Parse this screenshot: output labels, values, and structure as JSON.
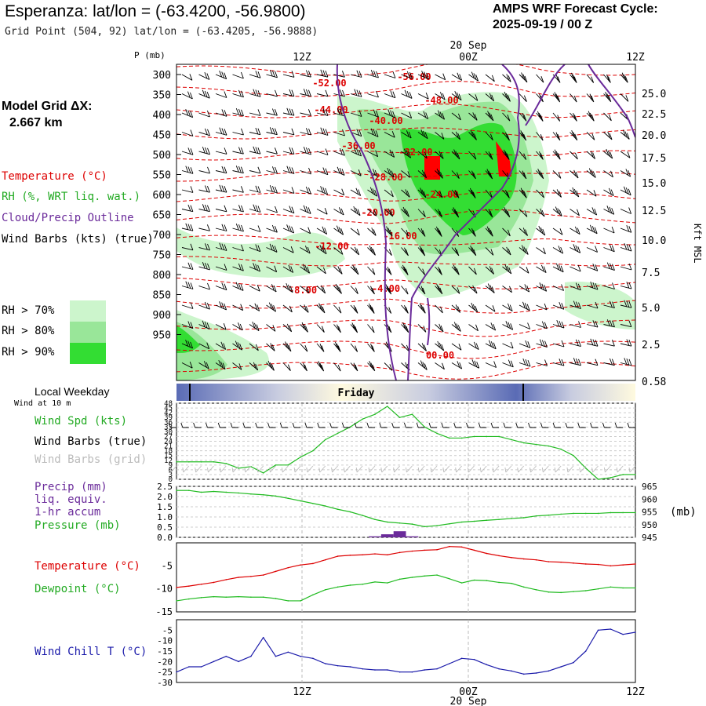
{
  "header": {
    "title": "Esperanza:  lat/lon = (-63.4200, -56.9800)",
    "grid_point": "Grid Point (504, 92) lat/lon = (-63.4205, -56.9888)",
    "cycle_line1": "AMPS WRF Forecast Cycle:",
    "cycle_line2": "2025-09-19 / 00  Z",
    "model_grid_label": "Model Grid ΔX:",
    "model_grid_value": "2.667 km"
  },
  "legend": {
    "temperature": "Temperature (°C)",
    "rh": "RH (%, WRT liq. wat.)",
    "cloud": "Cloud/Precip Outline",
    "wind": "Wind Barbs (kts) (true)",
    "rh70": "RH > 70%",
    "rh80": "RH > 80%",
    "rh90": "RH > 90%",
    "local_weekday": "Local Weekday",
    "wind10": "Wind at 10 m",
    "wind_spd": "Wind Spd (kts)",
    "wind_barbs_true": "Wind Barbs (true)",
    "wind_barbs_grid": "Wind Barbs (grid)",
    "precip1": "Precip (mm)",
    "precip2": "liq. equiv.",
    "precip3": "1-hr accum",
    "pressure": "Pressure (mb)",
    "pressure_unit": "(mb)",
    "temp2": "Temperature (°C)",
    "dewpoint": "Dewpoint (°C)",
    "windchill": "Wind Chill T (°C)"
  },
  "colors": {
    "temperature": "#dd0000",
    "green": "#22bb22",
    "purple": "#6a2a9a",
    "blue": "#1a1aaa",
    "rh70": "#ccf5cc",
    "rh80": "#99e699",
    "rh90": "#33dd33",
    "barb_grid": "#bbbbbb"
  },
  "chart_data": [
    {
      "type": "heatmap",
      "name": "cross-section",
      "ylabel": "P (mb)",
      "y_ticks": [
        "300",
        "350",
        "400",
        "450",
        "500",
        "550",
        "600",
        "650",
        "700",
        "750",
        "800",
        "850",
        "900",
        "950"
      ],
      "right_label": "Kft MSL",
      "right_ticks": [
        "25.0",
        "22.5",
        "20.0",
        "17.5",
        "15.0",
        "12.5",
        "10.0",
        "7.5",
        "5.0",
        "2.5",
        "0.58"
      ],
      "top_ticks": [
        "12Z",
        "00Z",
        "12Z"
      ],
      "top_date": "20 Sep",
      "temperature_labels": [
        "-52.00",
        "-56.00",
        "-48.00",
        "-44.00",
        "-40.00",
        "-36.00",
        "-32.00",
        "-28.00",
        "-24.00",
        "-20.00",
        "-16.00",
        "-12.00",
        "-8.00",
        "-4.00",
        "00.00"
      ]
    },
    {
      "type": "table",
      "name": "weekday-bar",
      "labels": [
        "Friday"
      ]
    },
    {
      "type": "line",
      "name": "wind-speed",
      "ylabel": "Wind Spd (kts)",
      "y_ticks": [
        "48",
        "45",
        "42",
        "39",
        "36",
        "33",
        "30",
        "27",
        "24",
        "21",
        "18",
        "15",
        "12",
        "9",
        "6",
        "3",
        "0"
      ],
      "ylim": [
        0,
        48
      ],
      "series": [
        {
          "name": "Wind Spd (kts)",
          "color": "#22bb22",
          "values": [
            11,
            11,
            11,
            11,
            10,
            7,
            8,
            4,
            9,
            9,
            14,
            18,
            25,
            29,
            33,
            38,
            41,
            46,
            39,
            41,
            33,
            29,
            26,
            26,
            27,
            27,
            27,
            25,
            23,
            22,
            21,
            19,
            15,
            7,
            0,
            1,
            3,
            3
          ]
        }
      ]
    },
    {
      "type": "line",
      "name": "pressure",
      "y_ticks": [
        "2.5",
        "2.0",
        "1.5",
        "1.0",
        "0.5",
        "0.0"
      ],
      "right_ticks": [
        "965",
        "960",
        "955",
        "950",
        "945"
      ],
      "ylim": [
        945,
        965
      ],
      "precip_ylim": [
        0,
        2.5
      ],
      "series": [
        {
          "name": "Pressure (mb)",
          "color": "#22bb22",
          "values": [
            963.4,
            963.4,
            962.7,
            963.0,
            962.7,
            962.4,
            962.0,
            961.7,
            961.2,
            960.3,
            959.3,
            958.3,
            957.3,
            956.0,
            955.0,
            953.6,
            952.0,
            951.0,
            950.6,
            950.2,
            949.2,
            949.6,
            950.3,
            951.0,
            951.3,
            951.7,
            952.0,
            952.4,
            952.7,
            953.4,
            953.7,
            954.1,
            954.4,
            954.4,
            954.4,
            954.7,
            954.7,
            954.7
          ]
        },
        {
          "name": "Precip (mm)",
          "color": "#6a2a9a",
          "values": [
            0,
            0,
            0,
            0,
            0,
            0,
            0,
            0,
            0,
            0,
            0,
            0,
            0,
            0,
            0,
            0,
            0.05,
            0.15,
            0.3,
            0.05,
            0,
            0,
            0,
            0,
            0,
            0,
            0,
            0,
            0,
            0,
            0,
            0,
            0,
            0,
            0,
            0,
            0,
            0
          ]
        }
      ]
    },
    {
      "type": "line",
      "name": "temperature-dewpoint",
      "y_ticks": [
        "-5",
        "-10",
        "-15"
      ],
      "ylim": [
        -15,
        0
      ],
      "series": [
        {
          "name": "Temperature (°C)",
          "color": "#dd0000",
          "values": [
            -9.7,
            -9.4,
            -9,
            -8.6,
            -8,
            -7.5,
            -7.3,
            -7,
            -6.2,
            -5.4,
            -4.8,
            -4.5,
            -3.7,
            -2.9,
            -2.7,
            -2.6,
            -2.4,
            -2.6,
            -2.1,
            -1.8,
            -1.6,
            -1.5,
            -0.8,
            -0.9,
            -1.6,
            -2.3,
            -2.8,
            -3.2,
            -3.5,
            -3.7,
            -4.1,
            -4.2,
            -4.4,
            -4.6,
            -4.7,
            -5,
            -4.8,
            -4.6
          ]
        },
        {
          "name": "Dewpoint (°C)",
          "color": "#22bb22",
          "values": [
            -12.6,
            -12.2,
            -11.9,
            -11.7,
            -11.8,
            -11.7,
            -11.8,
            -11.8,
            -12.1,
            -12.6,
            -12.6,
            -11.3,
            -10.2,
            -9.6,
            -9.2,
            -9,
            -8.5,
            -8.7,
            -7.9,
            -7.5,
            -7.2,
            -7,
            -7.8,
            -8.7,
            -8.1,
            -8.2,
            -8.6,
            -8.8,
            -9.6,
            -10.2,
            -10.7,
            -10.8,
            -10.6,
            -10.4,
            -10,
            -9.6,
            -9.8,
            -9.8
          ]
        }
      ]
    },
    {
      "type": "line",
      "name": "wind-chill",
      "y_ticks": [
        "-5",
        "-10",
        "-15",
        "-20",
        "-25",
        "-30"
      ],
      "ylim": [
        -30,
        0
      ],
      "bottom_ticks": [
        "12Z",
        "00Z",
        "12Z"
      ],
      "bottom_date": "20 Sep",
      "series": [
        {
          "name": "Wind Chill T (°C)",
          "color": "#1a1aaa",
          "values": [
            -25,
            -22.5,
            -22.5,
            -20,
            -17.5,
            -20,
            -17.5,
            -8.5,
            -17.5,
            -15.5,
            -17.5,
            -18.5,
            -21,
            -22,
            -22.5,
            -23.5,
            -24,
            -24,
            -25,
            -25,
            -24,
            -23.5,
            -21,
            -18.5,
            -19,
            -21.5,
            -23.5,
            -24.5,
            -26,
            -25.5,
            -24.5,
            -22.5,
            -20.5,
            -15,
            -5,
            -4.5,
            -7,
            -6
          ]
        }
      ]
    }
  ]
}
